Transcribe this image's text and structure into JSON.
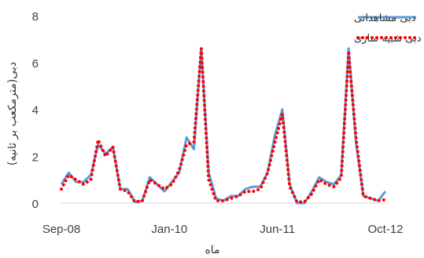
{
  "chart_data": {
    "type": "line",
    "xlabel": "ماه",
    "ylabel": "دبی(مترمکعب بر ثانیه)",
    "ylim": [
      0,
      8
    ],
    "yticks": [
      0,
      2,
      4,
      6,
      8
    ],
    "xticks": [
      "Sep-08",
      "Jan-10",
      "Jun-11",
      "Oct-12"
    ],
    "grid": false,
    "legend_position": "top-right",
    "series": [
      {
        "name": "دبی مشاهداتی",
        "color": "#5b9bd5",
        "style": "solid",
        "values": [
          0.8,
          1.3,
          0.9,
          0.9,
          1.2,
          2.5,
          2.1,
          2.4,
          0.6,
          0.6,
          0.05,
          0.1,
          1.1,
          0.8,
          0.5,
          0.9,
          1.3,
          2.8,
          2.3,
          6.6,
          1.3,
          0.2,
          0.1,
          0.3,
          0.3,
          0.6,
          0.7,
          0.7,
          1.3,
          2.9,
          4.0,
          0.8,
          0.0,
          0.0,
          0.5,
          1.1,
          0.9,
          0.8,
          1.2,
          6.6,
          2.6,
          0.3,
          0.2,
          0.1,
          0.5
        ]
      },
      {
        "name": "دبی شبیه سازی",
        "color": "#ff0000",
        "style": "dotted",
        "values": [
          0.6,
          1.2,
          1.0,
          0.8,
          1.0,
          2.7,
          2.0,
          2.4,
          0.6,
          0.5,
          0.05,
          0.1,
          1.0,
          0.8,
          0.6,
          0.8,
          1.4,
          2.5,
          2.6,
          6.6,
          1.0,
          0.1,
          0.1,
          0.2,
          0.3,
          0.5,
          0.5,
          0.6,
          1.3,
          2.6,
          3.8,
          0.7,
          0.05,
          0.05,
          0.4,
          1.0,
          0.8,
          0.7,
          1.1,
          6.4,
          2.8,
          0.3,
          0.2,
          0.1,
          0.15
        ]
      }
    ]
  }
}
